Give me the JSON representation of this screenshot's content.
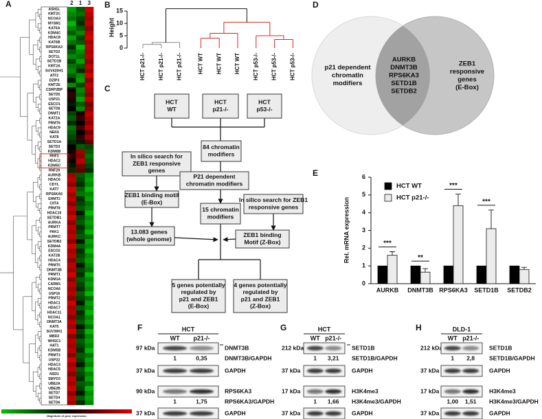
{
  "panel_labels": [
    "A",
    "B",
    "C",
    "D",
    "E",
    "F",
    "G",
    "H"
  ],
  "heatmap": {
    "columns": [
      "2",
      "1",
      "3"
    ],
    "genes": [
      "ASH1L",
      "KMT2C",
      "NCOA3",
      "MYSM1",
      "KAT6A",
      "KDM4C",
      "HDAC8",
      "KAT6B",
      "RPS6KA3",
      "SETD2",
      "DOT1L",
      "SETD1B",
      "KMT2A",
      "SUV420H1",
      "ATF2",
      "DZIP3",
      "KMT2E",
      "CSRP2BP",
      "SETD5",
      "USP21",
      "ESCO1",
      "SETD8",
      "DNMT1",
      "KAT2A",
      "PRMT6",
      "HDAC9",
      "NEK6",
      "KAT8",
      "SETD1A",
      "SETD3",
      "KDM6B",
      "RNF2",
      "HDAC2",
      "KDM5C",
      "RNF20",
      "AURKB",
      "HDAC6",
      "CDYL",
      "KAT7",
      "RPS6KA5",
      "EHMT2",
      "CIITA",
      "PRMT8",
      "HDAC10",
      "SETDB1",
      "AURKA",
      "PRMT7",
      "PAK1",
      "AURKC",
      "SETDB2",
      "KDM4A",
      "ESCO2",
      "KAT2B",
      "HDAC4",
      "PRMT5",
      "DNMT3B",
      "PRMT1",
      "KDM1A",
      "CARM1",
      "NCOA6",
      "USP16",
      "PRMT2",
      "HDAC1",
      "HDAC7",
      "HDAC11",
      "NCOA1",
      "DNMT3A",
      "KAT5",
      "SUV39H1",
      "MBD2",
      "WHSC1",
      "HAT1",
      "KDM5B",
      "PRMT3",
      "USP22",
      "HDAC3",
      "HDAC5",
      "NSD1",
      "SMYD3",
      "UBE2A",
      "UBE2B",
      "SETD7",
      "SETD4",
      "SETD6"
    ],
    "values": [
      [
        0.15,
        0.3,
        0.95
      ],
      [
        0.2,
        0.25,
        0.9
      ],
      [
        0.25,
        0.35,
        0.85
      ],
      [
        0.1,
        0.4,
        0.9
      ],
      [
        0.2,
        0.3,
        0.8
      ],
      [
        0.3,
        0.2,
        0.9
      ],
      [
        0.15,
        0.35,
        0.95
      ],
      [
        0.25,
        0.3,
        0.85
      ],
      [
        0.4,
        0.1,
        0.9
      ],
      [
        0.3,
        0.2,
        0.85
      ],
      [
        0.2,
        0.25,
        0.9
      ],
      [
        0.35,
        0.15,
        0.8
      ],
      [
        0.25,
        0.3,
        0.9
      ],
      [
        0.2,
        0.4,
        0.85
      ],
      [
        0.3,
        0.2,
        0.95
      ],
      [
        0.45,
        0.15,
        0.8
      ],
      [
        0.2,
        0.35,
        0.9
      ],
      [
        0.5,
        0.2,
        0.85
      ],
      [
        0.6,
        0.25,
        0.8
      ],
      [
        0.55,
        0.15,
        0.9
      ],
      [
        0.45,
        0.3,
        0.75
      ],
      [
        0.5,
        0.2,
        0.8
      ],
      [
        0.35,
        0.55,
        0.9
      ],
      [
        0.3,
        0.6,
        0.85
      ],
      [
        0.4,
        0.5,
        0.8
      ],
      [
        0.25,
        0.65,
        0.9
      ],
      [
        0.3,
        0.5,
        0.75
      ],
      [
        0.35,
        0.6,
        0.85
      ],
      [
        0.4,
        0.45,
        0.7
      ],
      [
        0.5,
        0.3,
        0.35
      ],
      [
        0.55,
        0.85,
        0.3
      ],
      [
        0.6,
        0.8,
        0.25
      ],
      [
        0.5,
        0.9,
        0.3
      ],
      [
        0.45,
        0.75,
        0.35
      ],
      [
        0.4,
        0.7,
        0.4
      ],
      [
        0.85,
        0.3,
        0.2
      ],
      [
        0.9,
        0.35,
        0.15
      ],
      [
        0.8,
        0.4,
        0.2
      ],
      [
        0.95,
        0.3,
        0.1
      ],
      [
        0.85,
        0.25,
        0.2
      ],
      [
        0.9,
        0.4,
        0.15
      ],
      [
        0.8,
        0.35,
        0.25
      ],
      [
        0.9,
        0.3,
        0.2
      ],
      [
        0.85,
        0.45,
        0.1
      ],
      [
        0.95,
        0.35,
        0.2
      ],
      [
        0.8,
        0.3,
        0.15
      ],
      [
        0.9,
        0.4,
        0.2
      ],
      [
        0.85,
        0.35,
        0.1
      ],
      [
        0.9,
        0.3,
        0.25
      ],
      [
        0.8,
        0.45,
        0.15
      ],
      [
        0.95,
        0.3,
        0.2
      ],
      [
        0.85,
        0.4,
        0.1
      ],
      [
        0.9,
        0.35,
        0.2
      ],
      [
        0.8,
        0.3,
        0.15
      ],
      [
        0.9,
        0.45,
        0.2
      ],
      [
        0.85,
        0.35,
        0.25
      ],
      [
        0.95,
        0.4,
        0.1
      ],
      [
        0.8,
        0.3,
        0.2
      ],
      [
        0.9,
        0.35,
        0.15
      ],
      [
        0.85,
        0.4,
        0.2
      ],
      [
        0.9,
        0.3,
        0.1
      ],
      [
        0.8,
        0.35,
        0.25
      ],
      [
        0.95,
        0.45,
        0.15
      ],
      [
        0.85,
        0.3,
        0.2
      ],
      [
        0.9,
        0.4,
        0.1
      ],
      [
        0.8,
        0.35,
        0.2
      ],
      [
        0.9,
        0.3,
        0.15
      ],
      [
        0.85,
        0.45,
        0.25
      ],
      [
        0.95,
        0.35,
        0.1
      ],
      [
        0.8,
        0.4,
        0.2
      ],
      [
        0.9,
        0.3,
        0.15
      ],
      [
        0.85,
        0.35,
        0.2
      ],
      [
        0.9,
        0.4,
        0.1
      ],
      [
        0.8,
        0.3,
        0.25
      ],
      [
        0.95,
        0.35,
        0.15
      ],
      [
        0.85,
        0.45,
        0.2
      ],
      [
        0.9,
        0.3,
        0.1
      ],
      [
        0.8,
        0.35,
        0.2
      ],
      [
        0.9,
        0.4,
        0.15
      ],
      [
        0.85,
        0.3,
        0.25
      ],
      [
        0.95,
        0.35,
        0.1
      ],
      [
        0.8,
        0.45,
        0.2
      ],
      [
        0.9,
        0.3,
        0.15
      ],
      [
        0.85,
        0.4,
        0.2
      ]
    ],
    "colorbar_title": "Magnitude of gene expression"
  },
  "dendrogram": {
    "ylabel": "Height",
    "ylim": [
      0,
      17
    ],
    "yticks": [
      0,
      5,
      10,
      15
    ],
    "leaves": [
      "HCT p21-/-",
      "HCT p21-/-",
      "HCT p21-/-",
      "HCT WT",
      "HCT WT",
      "HCT WT",
      "HCT p53-/-",
      "HCT p53-/-",
      "HCT p53-/-"
    ],
    "merges": [
      [
        -1,
        -2,
        1.5
      ],
      [
        1,
        -3,
        2.3
      ],
      [
        -4,
        -5,
        4
      ],
      [
        3,
        -6,
        6
      ],
      [
        -8,
        -9,
        3.5
      ],
      [
        -7,
        5,
        5
      ],
      [
        4,
        6,
        10.5
      ],
      [
        2,
        7,
        16
      ]
    ]
  },
  "flowchart": {
    "nodes": [
      {
        "lines": [
          "HCT",
          "WT"
        ]
      },
      {
        "lines": [
          "HCT",
          "p21-/-"
        ]
      },
      {
        "lines": [
          "HCT",
          "p53-/-"
        ]
      },
      {
        "lines": [
          "84 chromatin",
          "modifiers"
        ]
      },
      {
        "lines": [
          "In silico search for",
          "ZEB1 responsive",
          "genes"
        ]
      },
      {
        "lines": [
          "P21 dependent",
          "chromatin modifiers"
        ]
      },
      {
        "lines": [
          "ZEB1 binding motif",
          "(E-Box)"
        ]
      },
      {
        "lines": [
          "15 chromatin",
          "modifiers"
        ]
      },
      {
        "lines": [
          "In silico search for ZEB1",
          "responsive genes"
        ]
      },
      {
        "lines": [
          "13.083 genes",
          "(whole genome)"
        ]
      },
      {
        "lines": [
          "ZEB1 binding",
          "Motif (Z-Box)"
        ]
      },
      {
        "lines": [
          "5 genes potentially",
          "regulated by",
          "p21 and ZEB1",
          "(E-Box)"
        ]
      },
      {
        "lines": [
          "4 genes potentially",
          "regulated by",
          "p21 and ZEB1",
          "(Z-Box)"
        ]
      }
    ]
  },
  "venn": {
    "left": [
      "p21 dependent",
      "chromatin",
      "modifiers"
    ],
    "overlap": [
      "AURKB",
      "DNMT3B",
      "RPS6KA3",
      "SETD1B",
      "SETDB2"
    ],
    "right": [
      "ZEB1",
      "responsive",
      "genes",
      "(E-Box)"
    ]
  },
  "chart_data": {
    "type": "bar",
    "ylabel": "Rel. mRNA expression",
    "categories": [
      "AURKB",
      "DNMT3B",
      "RPS6KA3",
      "SETD1B",
      "SETDB2"
    ],
    "series": [
      {
        "name": "HCT WT",
        "color": "#000000",
        "values": [
          1,
          1,
          1,
          1,
          1
        ]
      },
      {
        "name": "HCT p21-/-",
        "color": "#ececec",
        "values": [
          1.6,
          0.65,
          4.4,
          3.1,
          0.8
        ],
        "errors": [
          0.2,
          0.2,
          0.65,
          1.05,
          0.12
        ]
      }
    ],
    "significance": [
      "***",
      "**",
      "***",
      "***",
      null
    ],
    "ylim": [
      0,
      6
    ],
    "yticks": [
      0,
      1,
      2,
      3,
      4,
      5,
      6
    ]
  },
  "blots": [
    {
      "title": "HCT",
      "lanes": [
        "WT",
        "p21-/-"
      ],
      "rows": [
        {
          "kda": "97 kDa",
          "protein": "DNMT3B"
        },
        {
          "ratios": [
            "1",
            "0,35"
          ],
          "label": "DNMT3B/GAPDH"
        },
        {
          "kda": "37 kDa",
          "protein": "GAPDH"
        },
        {
          "kda": "90 kDa",
          "protein": "RPS6KA3"
        },
        {
          "ratios": [
            "1",
            "1,75"
          ],
          "label": "RPS6KA3/GAPDH"
        },
        {
          "kda": "37 kDa",
          "protein": "GAPDH"
        }
      ]
    },
    {
      "title": "HCT",
      "lanes": [
        "WT",
        "p21-/-"
      ],
      "rows": [
        {
          "kda": "212 kDa",
          "protein": "SETD1B"
        },
        {
          "ratios": [
            "1",
            "3,21"
          ],
          "label": "SETD1B/GAPDH"
        },
        {
          "kda": "37 kDa",
          "protein": "GAPDH"
        },
        {
          "kda": "17 kDa",
          "protein": "H3K4me3"
        },
        {
          "ratios": [
            "1",
            "1,66"
          ],
          "label": "H3K4me3/GAPDH"
        },
        {
          "kda": "37 kDa",
          "protein": "GAPDH"
        }
      ]
    },
    {
      "title": "DLD-1",
      "lanes": [
        "WT",
        "p21-/-"
      ],
      "rows": [
        {
          "kda": "212 kDa",
          "protein": "SETD1B"
        },
        {
          "ratios": [
            "1",
            "2,8"
          ],
          "label": "SETD1B/GAPDH"
        },
        {
          "kda": "37 kDa",
          "protein": "GAPDH"
        },
        {
          "kda": "17 kDa",
          "protein": "H3K4me3"
        },
        {
          "ratios": [
            "1,00",
            "1,51"
          ],
          "label": "H3K4me3/GAPDH"
        },
        {
          "kda": "37 kDa",
          "protein": "GAPDH"
        }
      ]
    }
  ]
}
